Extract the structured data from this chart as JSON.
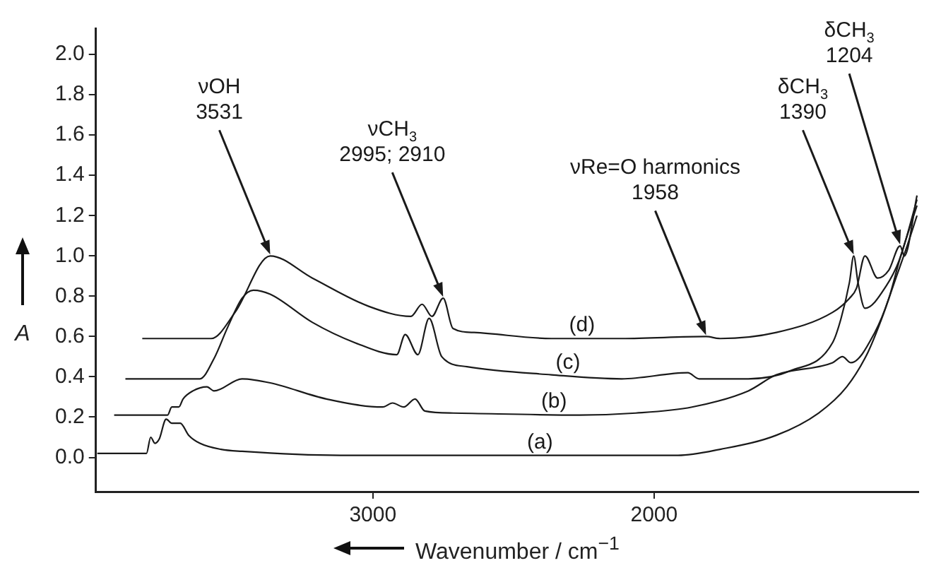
{
  "chart_data": {
    "type": "line",
    "xlabel": "Wavenumber / cm$^{−1}$",
    "ylabel": "A",
    "xlim": [
      3985,
      1060
    ],
    "xticks": [
      3000,
      2000
    ],
    "ylim": [
      -0.17,
      2.13
    ],
    "yticks": [
      {
        "value": 0,
        "label": "0.0"
      },
      {
        "value": 0.2,
        "label": "0.2"
      },
      {
        "value": 0.4,
        "label": "0.4"
      },
      {
        "value": 0.6,
        "label": "0.6"
      },
      {
        "value": 0.8,
        "label": "0.8"
      },
      {
        "value": 1,
        "label": "1.0"
      },
      {
        "value": 1.2,
        "label": "1.2"
      },
      {
        "value": 1.4,
        "label": "1.4"
      },
      {
        "value": 1.6,
        "label": "1.6"
      },
      {
        "value": 1.8,
        "label": "1.8"
      },
      {
        "value": 2,
        "label": "2.0"
      }
    ],
    "grid": false,
    "legend": false,
    "marker": "none",
    "line_style": "solid",
    "series": [
      {
        "name": "(a)",
        "color": "#1a1a1a",
        "x": [
          3980,
          3805,
          3790,
          3775,
          3760,
          3735,
          3715,
          3685,
          3655,
          3615,
          3540,
          3465,
          3115,
          2765,
          2115,
          1915,
          1765,
          1565,
          1415,
          1315,
          1240,
          1190,
          1140,
          1100,
          1065
        ],
        "values": [
          0.02,
          0.02,
          0.1,
          0.07,
          0.09,
          0.19,
          0.17,
          0.17,
          0.11,
          0.07,
          0.04,
          0.03,
          0.01,
          0.01,
          0.01,
          0.01,
          0.04,
          0.11,
          0.22,
          0.35,
          0.52,
          0.69,
          0.89,
          1.05,
          1.2
        ]
      },
      {
        "name": "(b)",
        "color": "#1a1a1a",
        "x": [
          3920,
          3730,
          3715,
          3690,
          3675,
          3640,
          3590,
          3565,
          3465,
          3365,
          3165,
          2965,
          2930,
          2890,
          2850,
          2815,
          2715,
          2265,
          2065,
          1865,
          1665,
          1565,
          1365,
          1330,
          1300,
          1215,
          1165,
          1125,
          1065
        ],
        "values": [
          0.21,
          0.21,
          0.25,
          0.25,
          0.29,
          0.33,
          0.35,
          0.33,
          0.39,
          0.37,
          0.29,
          0.25,
          0.27,
          0.25,
          0.29,
          0.23,
          0.22,
          0.21,
          0.22,
          0.25,
          0.33,
          0.41,
          0.47,
          0.5,
          0.47,
          0.62,
          0.79,
          0.99,
          1.25
        ]
      },
      {
        "name": "(c)",
        "color": "#1a1a1a",
        "x": [
          3880,
          3615,
          3565,
          3515,
          3465,
          3425,
          3365,
          3215,
          3065,
          2915,
          2885,
          2840,
          2800,
          2755,
          2665,
          2365,
          2115,
          1880,
          1840,
          1665,
          1515,
          1365,
          1335,
          1305,
          1290,
          1275,
          1250,
          1175,
          1125,
          1065
        ],
        "values": [
          0.39,
          0.39,
          0.49,
          0.65,
          0.79,
          0.83,
          0.81,
          0.67,
          0.57,
          0.51,
          0.61,
          0.51,
          0.69,
          0.5,
          0.45,
          0.41,
          0.39,
          0.42,
          0.39,
          0.39,
          0.43,
          0.57,
          0.69,
          0.87,
          1.0,
          0.87,
          0.74,
          0.85,
          0.99,
          1.28
        ]
      },
      {
        "name": "(d)",
        "color": "#1a1a1a",
        "x": [
          3820,
          3575,
          3490,
          3365,
          3215,
          3015,
          2865,
          2825,
          2790,
          2750,
          2715,
          2640,
          2365,
          2115,
          1815,
          1765,
          1565,
          1365,
          1305,
          1280,
          1250,
          1205,
          1165,
          1125,
          1110,
          1065
        ],
        "values": [
          0.59,
          0.59,
          0.72,
          1.0,
          0.89,
          0.75,
          0.7,
          0.76,
          0.7,
          0.79,
          0.64,
          0.62,
          0.59,
          0.59,
          0.6,
          0.59,
          0.62,
          0.72,
          0.79,
          0.84,
          1.0,
          0.89,
          0.93,
          1.05,
          1.0,
          1.3
        ]
      }
    ],
    "annotations": [
      {
        "text": "νOH\n3531",
        "x": 3365,
        "y": 1.0
      },
      {
        "text": "νCH$_{3}$\n2995; 2910",
        "x": 2750,
        "y": 0.79
      },
      {
        "text": "νRe=O harmonics\n1958",
        "x": 1815,
        "y": 0.6
      },
      {
        "text": "δCH$_{3}$\n1390",
        "x": 1290,
        "y": 1.0
      },
      {
        "text": "δCH$_{3}$\n1204",
        "x": 1125,
        "y": 1.05
      }
    ]
  }
}
